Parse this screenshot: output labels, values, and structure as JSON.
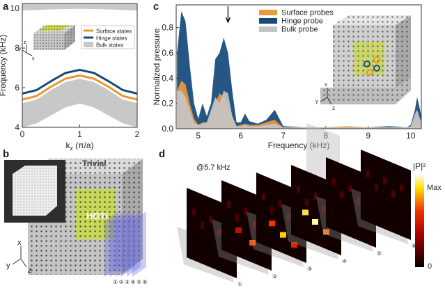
{
  "panel_labels": [
    "a",
    "b",
    "c",
    "d"
  ],
  "chart_data": [
    {
      "type": "line",
      "xlabel": {
        "main": "k",
        "sub": "z",
        "rest": " (π/a)"
      },
      "ylabel": "Frequency (kHz)",
      "x": [
        0,
        0.25,
        0.5,
        0.75,
        1,
        1.25,
        1.5,
        1.75,
        2
      ],
      "xlim": [
        0,
        2
      ],
      "xticks": [
        0,
        1,
        2
      ],
      "ylim": [
        4,
        10.25
      ],
      "yticks": [
        4,
        6,
        8,
        10
      ],
      "series": [
        {
          "name": "Surface states",
          "color": "#e8962e",
          "values": [
            5.4,
            5.58,
            6.05,
            6.45,
            6.62,
            6.45,
            6.05,
            5.58,
            5.4
          ]
        },
        {
          "name": "Hinge states",
          "color": "#154a78",
          "values": [
            5.7,
            5.88,
            6.33,
            6.74,
            6.9,
            6.74,
            6.33,
            5.88,
            5.7
          ]
        },
        {
          "name": "Bulk states",
          "color": "#c8c8c8",
          "bands": [
            {
              "lower": [
                4.0,
                4.2,
                4.6,
                5.0,
                5.2,
                5.0,
                4.6,
                4.2,
                4.0
              ],
              "upper": [
                5.22,
                5.4,
                5.88,
                6.28,
                6.45,
                6.28,
                5.88,
                5.4,
                5.22
              ]
            },
            {
              "lower": [
                9.9,
                9.92,
                9.95,
                9.97,
                9.98,
                9.97,
                9.95,
                9.92,
                9.9
              ],
              "upper": [
                10.25,
                10.25,
                10.25,
                10.25,
                10.25,
                10.25,
                10.25,
                10.25,
                10.25
              ]
            }
          ]
        }
      ]
    },
    {
      "type": "area",
      "xlabel": "Frequency (kHz)",
      "ylabel": "Normalized pressure",
      "x": [
        4.5,
        4.6,
        4.7,
        4.8,
        4.9,
        5.0,
        5.1,
        5.2,
        5.3,
        5.4,
        5.5,
        5.6,
        5.7,
        5.8,
        5.9,
        6.0,
        6.1,
        6.2,
        6.4,
        6.6,
        6.8,
        7.0,
        7.5,
        8.0,
        8.5,
        9.0,
        9.5,
        9.9,
        10.0,
        10.1,
        10.15,
        10.2,
        10.25
      ],
      "xlim": [
        4.48,
        10.25
      ],
      "xticks": [
        5,
        6,
        7,
        8,
        9,
        10
      ],
      "ylim": [
        0,
        0.98
      ],
      "yticks": [
        {
          "value": 0,
          "label": "0.0"
        },
        0.2,
        0.4,
        0.6,
        0.8
      ],
      "arrow_x": 5.7,
      "series": [
        {
          "name": "Surface probes",
          "color": "#eb9a3a",
          "values": [
            0.3,
            0.38,
            0.35,
            0.2,
            0.08,
            0.03,
            0.05,
            0.05,
            0.1,
            0.2,
            0.28,
            0.25,
            0.2,
            0.1,
            0.02,
            0.03,
            0.04,
            0.03,
            0.03,
            0.05,
            0.07,
            0.01,
            0.01,
            0.01,
            0.02,
            0.01,
            0.01,
            0.01,
            0.02,
            0.06,
            0.1,
            0.07,
            0.05
          ]
        },
        {
          "name": "Hinge probe",
          "color": "#14497a",
          "values": [
            0.6,
            0.93,
            0.85,
            0.5,
            0.2,
            0.08,
            0.2,
            0.1,
            0.2,
            0.55,
            0.6,
            0.72,
            0.6,
            0.3,
            0.05,
            0.05,
            0.12,
            0.06,
            0.04,
            0.07,
            0.15,
            0.02,
            0.01,
            0.01,
            0.01,
            0.01,
            0.02,
            0.01,
            0.03,
            0.15,
            0.25,
            0.18,
            0.1
          ]
        },
        {
          "name": "Bulk probe",
          "color": "#c4c4c4",
          "values": [
            0.3,
            0.3,
            0.25,
            0.15,
            0.05,
            0.03,
            0.04,
            0.05,
            0.15,
            0.25,
            0.2,
            0.3,
            0.28,
            0.1,
            0.02,
            0.02,
            0.03,
            0.02,
            0.02,
            0.03,
            0.04,
            0.01,
            0.01,
            0.01,
            0.01,
            0.01,
            0.01,
            0.01,
            0.02,
            0.12,
            0.15,
            0.1,
            0.05
          ]
        }
      ]
    }
  ],
  "inset_a": {
    "axes": [
      "z",
      "y",
      "x"
    ]
  },
  "inset_c": {
    "axes": [
      "x",
      "y",
      "z"
    ]
  },
  "panel_b": {
    "trivial": "Trivial",
    "hoti": "HOTI",
    "axes": [
      "x",
      "y",
      "z"
    ],
    "slices": [
      "①",
      "②",
      "③",
      "④",
      "⑤",
      "⑥"
    ]
  },
  "panel_d": {
    "annotation": "@5.7 kHz",
    "colorbar_title": "|P|²",
    "colorbar_max": "Max",
    "colorbar_min": "0",
    "slices": [
      "①",
      "②",
      "③",
      "④",
      "⑤",
      "⑥"
    ]
  }
}
